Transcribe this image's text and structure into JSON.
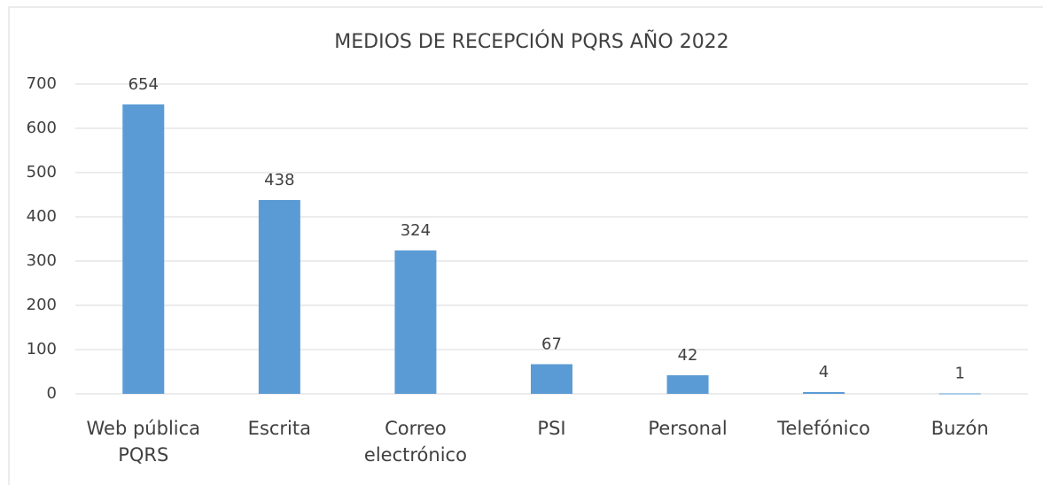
{
  "chart_data": {
    "type": "bar",
    "title": "MEDIOS DE RECEPCIÓN PQRS AÑO 2022",
    "categories": [
      "Web pública PQRS",
      "Escrita",
      "Correo electrónico",
      "PSI",
      "Personal",
      "Telefónico",
      "Buzón"
    ],
    "values": [
      654,
      438,
      324,
      67,
      42,
      4,
      1
    ],
    "color": "#5b9bd5",
    "ylim": [
      0,
      700
    ],
    "yticks": [
      0,
      100,
      200,
      300,
      400,
      500,
      600,
      700
    ],
    "grid": true
  }
}
